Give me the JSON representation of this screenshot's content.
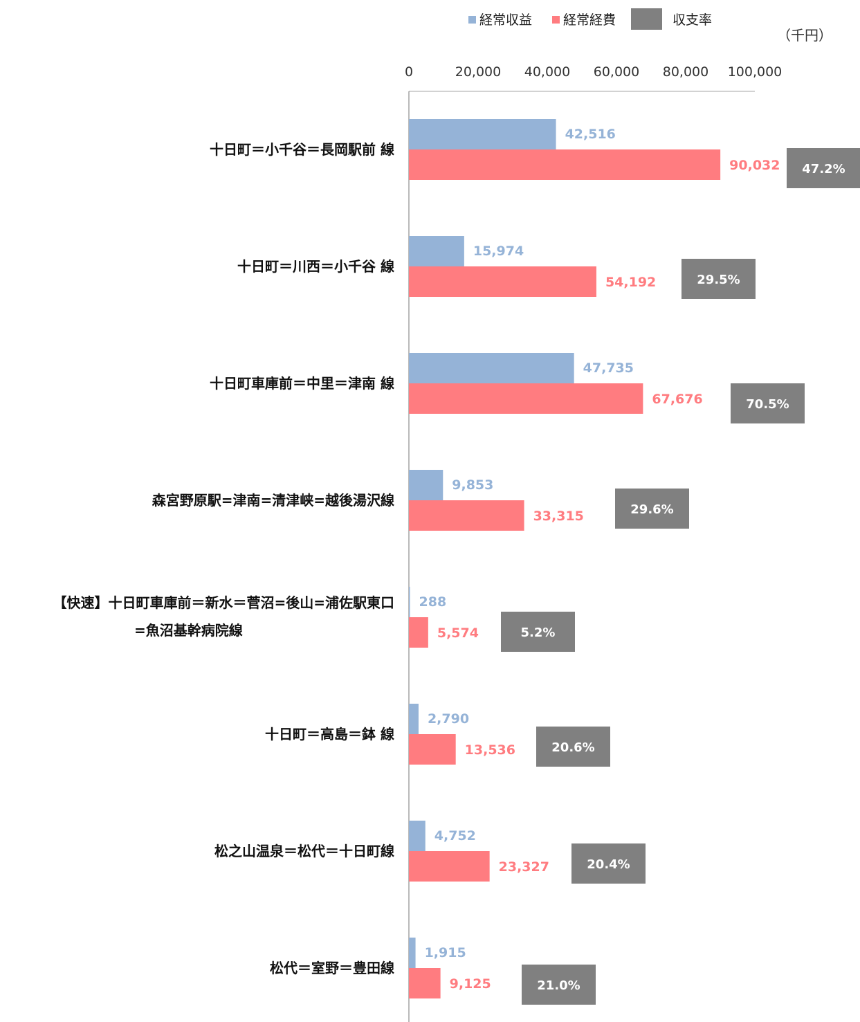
{
  "chart_data": {
    "type": "bar",
    "orientation": "horizontal",
    "unit": "（千円）",
    "xlim": [
      0,
      100000
    ],
    "x_ticks": [
      "0",
      "20,000",
      "40,000",
      "60,000",
      "80,000",
      "100,000"
    ],
    "tick_values": [
      0,
      20000,
      40000,
      60000,
      80000,
      100000
    ],
    "legend_position": "top",
    "grid": false,
    "categories": [
      [
        "十日町＝小千谷＝長岡駅前 線"
      ],
      [
        "十日町＝川西＝小千谷 線"
      ],
      [
        "十日町車庫前＝中里＝津南 線"
      ],
      [
        "森宮野原駅=津南=清津峡=越後湯沢線"
      ],
      [
        "【快速】十日町車庫前＝新水＝菅沼=後山=浦佐駅東口",
        "=魚沼基幹病院線"
      ],
      [
        "十日町＝高島＝鉢 線"
      ],
      [
        "松之山温泉＝松代＝十日町線"
      ],
      [
        "松代＝室野＝豊田線"
      ]
    ],
    "series": [
      {
        "name": "経常収益",
        "color": "#95B3D7",
        "values": [
          42516,
          15974,
          47735,
          9853,
          288,
          2790,
          4752,
          1915
        ],
        "labels": [
          "42,516",
          "15,974",
          "47,735",
          "9,853",
          "288",
          "2,790",
          "4,752",
          "1,915"
        ]
      },
      {
        "name": "経常経費",
        "color": "#FF7C80",
        "values": [
          90032,
          54192,
          67676,
          33315,
          5574,
          13536,
          23327,
          9125
        ],
        "labels": [
          "90,032",
          "54,192",
          "67,676",
          "33,315",
          "5,574",
          "13,536",
          "23,327",
          "9,125"
        ]
      },
      {
        "name": "収支率",
        "color": "#808080",
        "values": [
          47.2,
          29.5,
          70.5,
          29.6,
          5.2,
          20.6,
          20.4,
          21.0
        ],
        "labels": [
          "47.2%",
          "29.5%",
          "70.5%",
          "29.6%",
          "5.2%",
          "20.6%",
          "20.4%",
          "21.0%"
        ]
      }
    ]
  }
}
